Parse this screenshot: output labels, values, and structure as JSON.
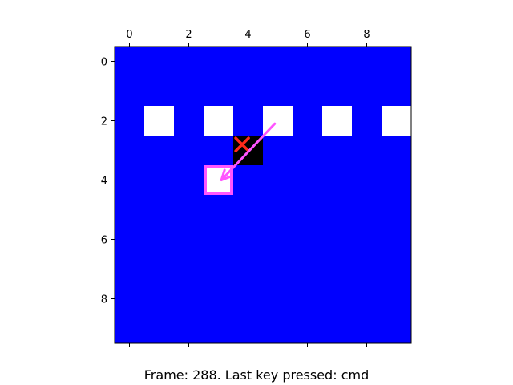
{
  "colors": {
    "background": "#0000ff",
    "cell": "#ffffff",
    "agent": "#000000",
    "cross": "#ff2a1a",
    "highlight": "#ff55ff",
    "axis": "#000000"
  },
  "icons": {
    "cross": "x-mark",
    "arrow": "arrow"
  },
  "grid": {
    "x_min": -0.5,
    "x_max": 9.5,
    "y_min": -0.5,
    "y_max": 9.5
  },
  "axes": {
    "x_ticks": [
      0,
      2,
      4,
      6,
      8
    ],
    "y_ticks": [
      0,
      2,
      4,
      6,
      8
    ],
    "x_tick_labels": [
      "0",
      "2",
      "4",
      "6",
      "8"
    ],
    "y_tick_labels": [
      "0",
      "2",
      "4",
      "6",
      "8"
    ]
  },
  "board": {
    "white_cells": [
      {
        "col": 1,
        "row": 2
      },
      {
        "col": 3,
        "row": 2
      },
      {
        "col": 5,
        "row": 2
      },
      {
        "col": 7,
        "row": 2
      },
      {
        "col": 9,
        "row": 2
      }
    ],
    "agent_cell": {
      "col": 4,
      "row": 3
    },
    "cross_at": {
      "x": 3.8,
      "y": 2.8
    },
    "highlight_cell": {
      "col": 3,
      "row": 4
    },
    "arrow": {
      "from_x": 4.9,
      "from_y": 2.1,
      "to_x": 3.1,
      "to_y": 4.0
    }
  },
  "status": {
    "text": "Frame: 288. Last key pressed: cmd"
  }
}
